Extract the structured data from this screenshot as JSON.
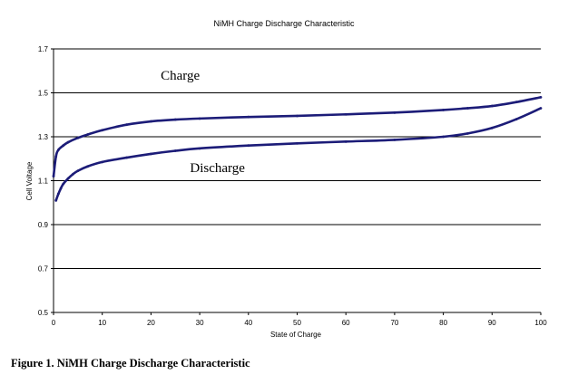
{
  "caption": "Figure 1.  NiMH Charge Discharge Characteristic",
  "colors": {
    "series": "#1c1c78",
    "gridline": "#000000"
  },
  "chart_data": {
    "type": "line",
    "title": "NiMH Charge Discharge Characteristic",
    "xlabel": "State of Charge",
    "ylabel": "Cell Voltage",
    "xlim": [
      0,
      100
    ],
    "ylim": [
      0.5,
      1.7
    ],
    "xticks": [
      0,
      10,
      20,
      30,
      40,
      50,
      60,
      70,
      80,
      90,
      100
    ],
    "yticks": [
      0.5,
      0.7,
      0.9,
      1.1,
      1.3,
      1.5,
      1.7
    ],
    "ytick_labels": [
      "0.5",
      "0.7",
      "0.9",
      "1.1",
      "1.3",
      "1.5",
      "1.7"
    ],
    "grid": "horizontal",
    "series": [
      {
        "name": "Charge",
        "x": [
          0,
          0.5,
          1,
          2,
          3,
          5,
          7,
          10,
          15,
          20,
          25,
          30,
          40,
          50,
          60,
          70,
          80,
          85,
          90,
          95,
          100
        ],
        "y": [
          1.12,
          1.21,
          1.24,
          1.26,
          1.275,
          1.295,
          1.31,
          1.33,
          1.355,
          1.37,
          1.378,
          1.383,
          1.39,
          1.395,
          1.402,
          1.41,
          1.422,
          1.43,
          1.44,
          1.458,
          1.48
        ]
      },
      {
        "name": "Discharge",
        "x": [
          0.5,
          1,
          1.5,
          2,
          3,
          4,
          5,
          7,
          10,
          15,
          20,
          25,
          30,
          40,
          50,
          60,
          70,
          80,
          85,
          90,
          95,
          100
        ],
        "y": [
          1.01,
          1.04,
          1.065,
          1.085,
          1.11,
          1.13,
          1.145,
          1.165,
          1.185,
          1.205,
          1.222,
          1.236,
          1.247,
          1.26,
          1.27,
          1.278,
          1.286,
          1.3,
          1.315,
          1.34,
          1.38,
          1.43
        ]
      }
    ],
    "annotations": [
      {
        "text": "Charge",
        "x": 22,
        "y": 1.56
      },
      {
        "text": "Discharge",
        "x": 28,
        "y": 1.14
      }
    ]
  }
}
